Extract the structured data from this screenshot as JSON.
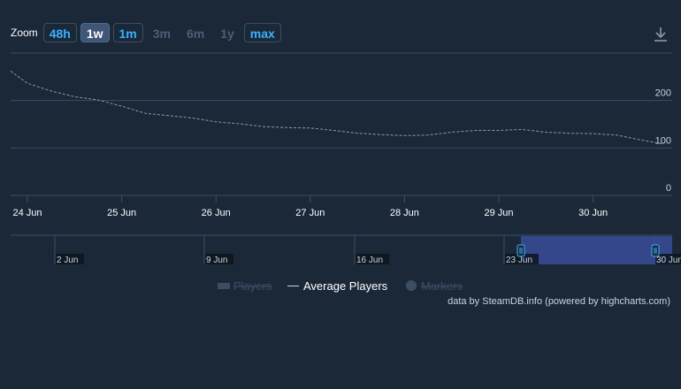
{
  "zoom": {
    "label": "Zoom",
    "buttons": [
      {
        "label": "48h",
        "state": "link"
      },
      {
        "label": "1w",
        "state": "selected"
      },
      {
        "label": "1m",
        "state": "link"
      },
      {
        "label": "3m",
        "state": "disabled"
      },
      {
        "label": "6m",
        "state": "disabled"
      },
      {
        "label": "1y",
        "state": "disabled"
      },
      {
        "label": "max",
        "state": "link"
      }
    ]
  },
  "export_icon": "download-icon",
  "credits": "data by SteamDB.info (powered by highcharts.com)",
  "colors": {
    "background": "#1b2838",
    "grid": "#3b4e63",
    "line": "#8f98a0",
    "accent": "#37b3ff",
    "navigator_mask": "#3a4c9a"
  },
  "chart_data": {
    "type": "line",
    "series": [
      {
        "name": "Average Players",
        "style": "dashed",
        "x": [
          "23 Jun 18:00",
          "24 Jun 00:00",
          "24 Jun 06:00",
          "24 Jun 12:00",
          "24 Jun 18:00",
          "25 Jun 00:00",
          "25 Jun 06:00",
          "25 Jun 12:00",
          "25 Jun 18:00",
          "26 Jun 00:00",
          "26 Jun 06:00",
          "26 Jun 12:00",
          "26 Jun 18:00",
          "27 Jun 00:00",
          "27 Jun 06:00",
          "27 Jun 12:00",
          "27 Jun 18:00",
          "28 Jun 00:00",
          "28 Jun 06:00",
          "28 Jun 12:00",
          "28 Jun 18:00",
          "29 Jun 00:00",
          "29 Jun 06:00",
          "29 Jun 12:00",
          "29 Jun 18:00",
          "30 Jun 00:00",
          "30 Jun 06:00",
          "30 Jun 12:00",
          "30 Jun 18:00"
        ],
        "values": [
          262,
          236,
          220,
          208,
          201,
          188,
          173,
          168,
          163,
          155,
          151,
          145,
          143,
          142,
          137,
          131,
          128,
          126,
          127,
          133,
          137,
          137,
          139,
          133,
          131,
          130,
          127,
          117,
          108
        ]
      },
      {
        "name": "Players",
        "hidden": true,
        "values": []
      },
      {
        "name": "Markers",
        "hidden": true,
        "values": []
      }
    ],
    "xaxis": {
      "ticks": [
        "24 Jun",
        "25 Jun",
        "26 Jun",
        "27 Jun",
        "28 Jun",
        "29 Jun",
        "30 Jun"
      ]
    },
    "yaxis": {
      "ticks": [
        0,
        100,
        200
      ],
      "range": [
        0,
        300
      ],
      "side": "right"
    },
    "grid": true,
    "legend": {
      "position": "bottom-center",
      "items": [
        {
          "label": "Players",
          "hidden": true
        },
        {
          "label": "Average Players",
          "hidden": false
        },
        {
          "label": "Markers",
          "hidden": true
        }
      ]
    },
    "navigator": {
      "ticks": [
        "2 Jun",
        "9 Jun",
        "16 Jun",
        "23 Jun",
        "30 Jun"
      ],
      "selected_range": [
        "23 Jun",
        "30 Jun"
      ]
    }
  }
}
